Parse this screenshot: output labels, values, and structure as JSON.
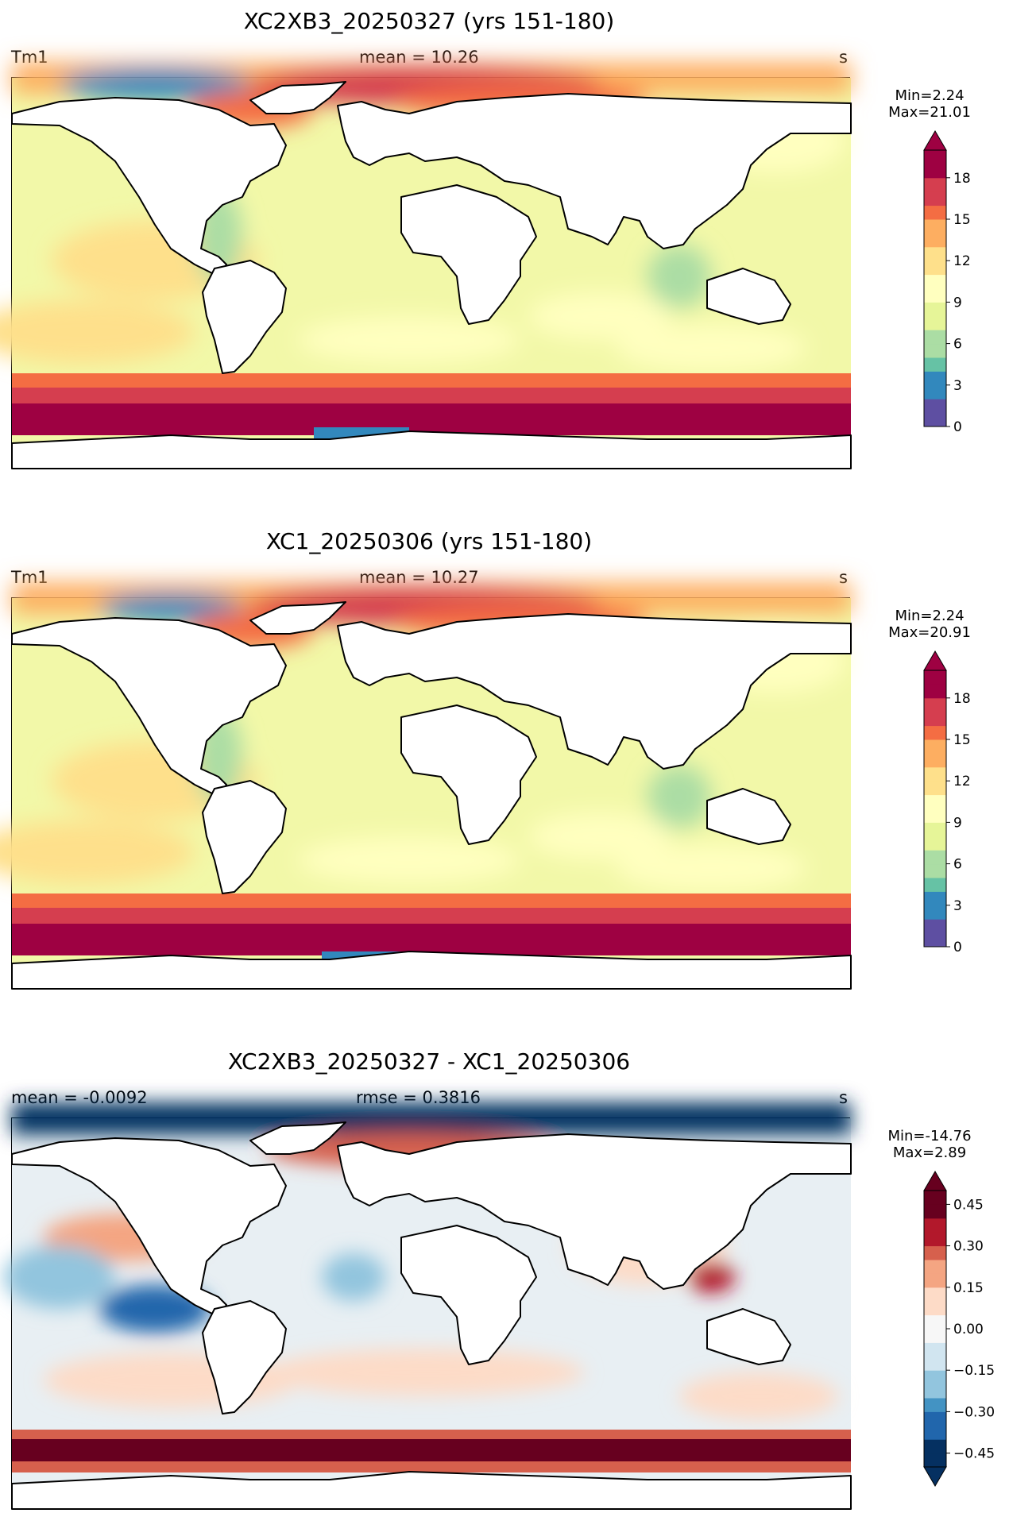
{
  "panels": [
    {
      "title": "XC2XB3_20250327 (yrs 151-180)",
      "left_label": "Tm1",
      "center_label": "mean = 10.26",
      "right_label": "s",
      "min_text": "Min=2.24",
      "max_text": "Max=21.01",
      "cmap": "spectral",
      "colorbar": {
        "min": 0,
        "max": 20,
        "ticks": [
          0,
          3,
          6,
          9,
          12,
          15,
          18
        ],
        "tick_labels": [
          "0",
          "3",
          "6",
          "9",
          "12",
          "15",
          "18"
        ],
        "extend": "max"
      }
    },
    {
      "title": "XC1_20250306 (yrs 151-180)",
      "left_label": "Tm1",
      "center_label": "mean = 10.27",
      "right_label": "s",
      "min_text": "Min=2.24",
      "max_text": "Max=20.91",
      "cmap": "spectral",
      "colorbar": {
        "min": 0,
        "max": 20,
        "ticks": [
          0,
          3,
          6,
          9,
          12,
          15,
          18
        ],
        "tick_labels": [
          "0",
          "3",
          "6",
          "9",
          "12",
          "15",
          "18"
        ],
        "extend": "max"
      }
    },
    {
      "title": "XC2XB3_20250327 - XC1_20250306",
      "left_label": "mean = -0.0092",
      "center_label": "rmse = 0.3816",
      "right_label": "s",
      "min_text": "Min=-14.76",
      "max_text": "Max=2.89",
      "cmap": "rdbu",
      "colorbar": {
        "min": -0.5,
        "max": 0.5,
        "ticks": [
          -0.45,
          -0.3,
          -0.15,
          0,
          0.15,
          0.3,
          0.45
        ],
        "tick_labels": [
          "−0.45",
          "−0.30",
          "−0.15",
          "0.00",
          "0.15",
          "0.30",
          "0.45"
        ],
        "extend": "both"
      }
    }
  ],
  "colors": {
    "spectral": [
      "#5e4fa2",
      "#3288bd",
      "#66c2a5",
      "#abdda4",
      "#e6f598",
      "#ffffbf",
      "#fee08b",
      "#fdae61",
      "#f46d43",
      "#d53e4f",
      "#9e0142"
    ],
    "rdbu": [
      "#053061",
      "#2166ac",
      "#4393c3",
      "#92c5de",
      "#d1e5f0",
      "#f7f7f7",
      "#fddbc7",
      "#f4a582",
      "#d6604d",
      "#b2182b",
      "#67001f"
    ]
  }
}
